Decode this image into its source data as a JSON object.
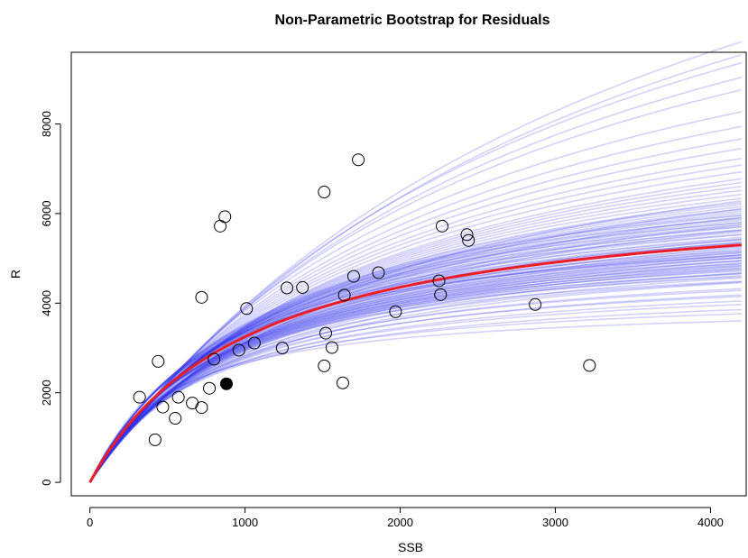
{
  "chart_data": {
    "type": "line",
    "title": "Non-Parametric Bootstrap for Residuals",
    "xlabel": "SSB",
    "ylabel": "R",
    "xlim": [
      -120,
      4230
    ],
    "ylim": [
      -300,
      9600
    ],
    "xticks": [
      0,
      1000,
      2000,
      3000,
      4000
    ],
    "yticks": [
      0,
      2000,
      4000,
      6000,
      8000
    ],
    "grid": false,
    "colors": {
      "fit": "#ee1c25",
      "bootstrap": "#3333ee",
      "points": "#000000"
    },
    "fit_curve": {
      "model": "Beverton-Holt",
      "a": 6600,
      "b": 1030,
      "x_max": 4200
    },
    "bootstrap_curves": [
      {
        "a": 4050,
        "b": 520
      },
      {
        "a": 4500,
        "b": 700
      },
      {
        "a": 4800,
        "b": 780
      },
      {
        "a": 5000,
        "b": 820
      },
      {
        "a": 5200,
        "b": 850
      },
      {
        "a": 5400,
        "b": 870
      },
      {
        "a": 5600,
        "b": 900
      },
      {
        "a": 5700,
        "b": 920
      },
      {
        "a": 5800,
        "b": 940
      },
      {
        "a": 5900,
        "b": 960
      },
      {
        "a": 6000,
        "b": 980
      },
      {
        "a": 6100,
        "b": 990
      },
      {
        "a": 6200,
        "b": 1000
      },
      {
        "a": 6300,
        "b": 1010
      },
      {
        "a": 6400,
        "b": 1020
      },
      {
        "a": 6500,
        "b": 1030
      },
      {
        "a": 6600,
        "b": 1040
      },
      {
        "a": 6700,
        "b": 1060
      },
      {
        "a": 6800,
        "b": 1080
      },
      {
        "a": 6900,
        "b": 1100
      },
      {
        "a": 7000,
        "b": 1120
      },
      {
        "a": 7100,
        "b": 1140
      },
      {
        "a": 7200,
        "b": 1160
      },
      {
        "a": 7300,
        "b": 1180
      },
      {
        "a": 7400,
        "b": 1200
      },
      {
        "a": 7500,
        "b": 1230
      },
      {
        "a": 7600,
        "b": 1260
      },
      {
        "a": 7700,
        "b": 1280
      },
      {
        "a": 7800,
        "b": 1300
      },
      {
        "a": 7900,
        "b": 1320
      },
      {
        "a": 8000,
        "b": 1350
      },
      {
        "a": 8100,
        "b": 1380
      },
      {
        "a": 8200,
        "b": 1400
      },
      {
        "a": 8300,
        "b": 1420
      },
      {
        "a": 8400,
        "b": 1450
      },
      {
        "a": 8600,
        "b": 1500
      },
      {
        "a": 8800,
        "b": 1550
      },
      {
        "a": 9000,
        "b": 1600
      },
      {
        "a": 9200,
        "b": 1650
      },
      {
        "a": 9400,
        "b": 1700
      },
      {
        "a": 9600,
        "b": 1750
      },
      {
        "a": 9900,
        "b": 1800
      },
      {
        "a": 10200,
        "b": 1850
      },
      {
        "a": 10500,
        "b": 1900
      },
      {
        "a": 11000,
        "b": 2000
      },
      {
        "a": 11500,
        "b": 2100
      },
      {
        "a": 12200,
        "b": 2250
      },
      {
        "a": 13000,
        "b": 2400
      },
      {
        "a": 14500,
        "b": 2750
      },
      {
        "a": 15500,
        "b": 3000
      },
      {
        "a": 17500,
        "b": 3500
      },
      {
        "a": 18500,
        "b": 3700
      },
      {
        "a": 16500,
        "b": 3200
      },
      {
        "a": 6000,
        "b": 800
      },
      {
        "a": 6100,
        "b": 850
      },
      {
        "a": 6250,
        "b": 880
      },
      {
        "a": 6400,
        "b": 900
      },
      {
        "a": 6550,
        "b": 950
      },
      {
        "a": 6700,
        "b": 980
      },
      {
        "a": 6850,
        "b": 1000
      },
      {
        "a": 7000,
        "b": 1030
      },
      {
        "a": 7150,
        "b": 1060
      },
      {
        "a": 7300,
        "b": 1090
      },
      {
        "a": 7450,
        "b": 1120
      },
      {
        "a": 7600,
        "b": 1150
      },
      {
        "a": 5500,
        "b": 980
      },
      {
        "a": 5650,
        "b": 1000
      },
      {
        "a": 5800,
        "b": 1020
      },
      {
        "a": 5950,
        "b": 1040
      },
      {
        "a": 6050,
        "b": 1060
      },
      {
        "a": 6150,
        "b": 1080
      },
      {
        "a": 6250,
        "b": 1100
      },
      {
        "a": 6350,
        "b": 1120
      },
      {
        "a": 6450,
        "b": 1140
      },
      {
        "a": 6550,
        "b": 1160
      },
      {
        "a": 6650,
        "b": 1180
      },
      {
        "a": 6750,
        "b": 1200
      },
      {
        "a": 6850,
        "b": 1220
      },
      {
        "a": 6950,
        "b": 1240
      },
      {
        "a": 7050,
        "b": 1260
      },
      {
        "a": 5300,
        "b": 760
      },
      {
        "a": 5450,
        "b": 790
      },
      {
        "a": 5550,
        "b": 810
      },
      {
        "a": 5650,
        "b": 830
      },
      {
        "a": 5750,
        "b": 860
      },
      {
        "a": 5850,
        "b": 880
      },
      {
        "a": 5950,
        "b": 910
      },
      {
        "a": 6050,
        "b": 930
      },
      {
        "a": 6150,
        "b": 950
      },
      {
        "a": 6300,
        "b": 970
      },
      {
        "a": 4300,
        "b": 600
      },
      {
        "a": 4650,
        "b": 720
      },
      {
        "a": 4900,
        "b": 760
      },
      {
        "a": 5100,
        "b": 800
      },
      {
        "a": 7500,
        "b": 1400
      },
      {
        "a": 7800,
        "b": 1500
      },
      {
        "a": 8100,
        "b": 1550
      },
      {
        "a": 8500,
        "b": 1650
      },
      {
        "a": 8900,
        "b": 1750
      }
    ],
    "points": [
      {
        "x": 320,
        "y": 1900
      },
      {
        "x": 420,
        "y": 950
      },
      {
        "x": 440,
        "y": 2700
      },
      {
        "x": 470,
        "y": 1680
      },
      {
        "x": 550,
        "y": 1430
      },
      {
        "x": 570,
        "y": 1900
      },
      {
        "x": 660,
        "y": 1770
      },
      {
        "x": 720,
        "y": 1670
      },
      {
        "x": 720,
        "y": 4130
      },
      {
        "x": 770,
        "y": 2100
      },
      {
        "x": 800,
        "y": 2750
      },
      {
        "x": 840,
        "y": 5720
      },
      {
        "x": 870,
        "y": 5930
      },
      {
        "x": 960,
        "y": 2950
      },
      {
        "x": 1010,
        "y": 3880
      },
      {
        "x": 1060,
        "y": 3110
      },
      {
        "x": 1240,
        "y": 3000
      },
      {
        "x": 1270,
        "y": 4340
      },
      {
        "x": 1370,
        "y": 4350
      },
      {
        "x": 1510,
        "y": 6480
      },
      {
        "x": 1510,
        "y": 2600
      },
      {
        "x": 1520,
        "y": 3330
      },
      {
        "x": 1560,
        "y": 3010
      },
      {
        "x": 1630,
        "y": 2220
      },
      {
        "x": 1640,
        "y": 4180
      },
      {
        "x": 1700,
        "y": 4600
      },
      {
        "x": 1730,
        "y": 7200
      },
      {
        "x": 1860,
        "y": 4680
      },
      {
        "x": 1970,
        "y": 3810
      },
      {
        "x": 2250,
        "y": 4500
      },
      {
        "x": 2260,
        "y": 4190
      },
      {
        "x": 2270,
        "y": 5720
      },
      {
        "x": 2430,
        "y": 5530
      },
      {
        "x": 2440,
        "y": 5400
      },
      {
        "x": 2870,
        "y": 3970
      },
      {
        "x": 3220,
        "y": 2610
      },
      {
        "x": 880,
        "y": 2200,
        "filled": true
      }
    ]
  }
}
